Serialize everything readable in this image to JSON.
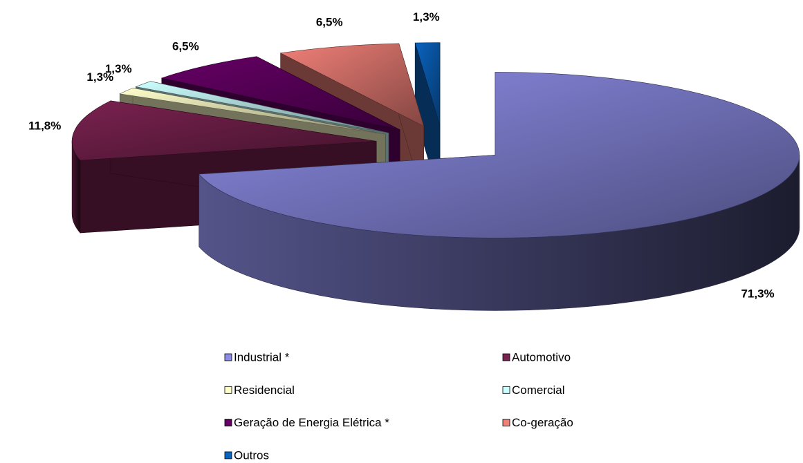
{
  "chart_data": {
    "type": "pie",
    "categories": [
      "Industrial *",
      "Automotivo",
      "Residencial",
      "Comercial",
      "Geração de Energia Elétrica *",
      "Co-geração",
      "Outros"
    ],
    "values": [
      71.3,
      11.8,
      1.3,
      1.3,
      6.5,
      6.5,
      1.3
    ],
    "value_labels": [
      "71,3%",
      "11,8%",
      "1,3%",
      "1,3%",
      "6,5%",
      "6,5%",
      "1,3%"
    ],
    "colors": [
      "#8c8ce6",
      "#7a2250",
      "#ffffcc",
      "#ccffff",
      "#660066",
      "#f08078",
      "#0a64c0"
    ],
    "legend": "bottom"
  }
}
